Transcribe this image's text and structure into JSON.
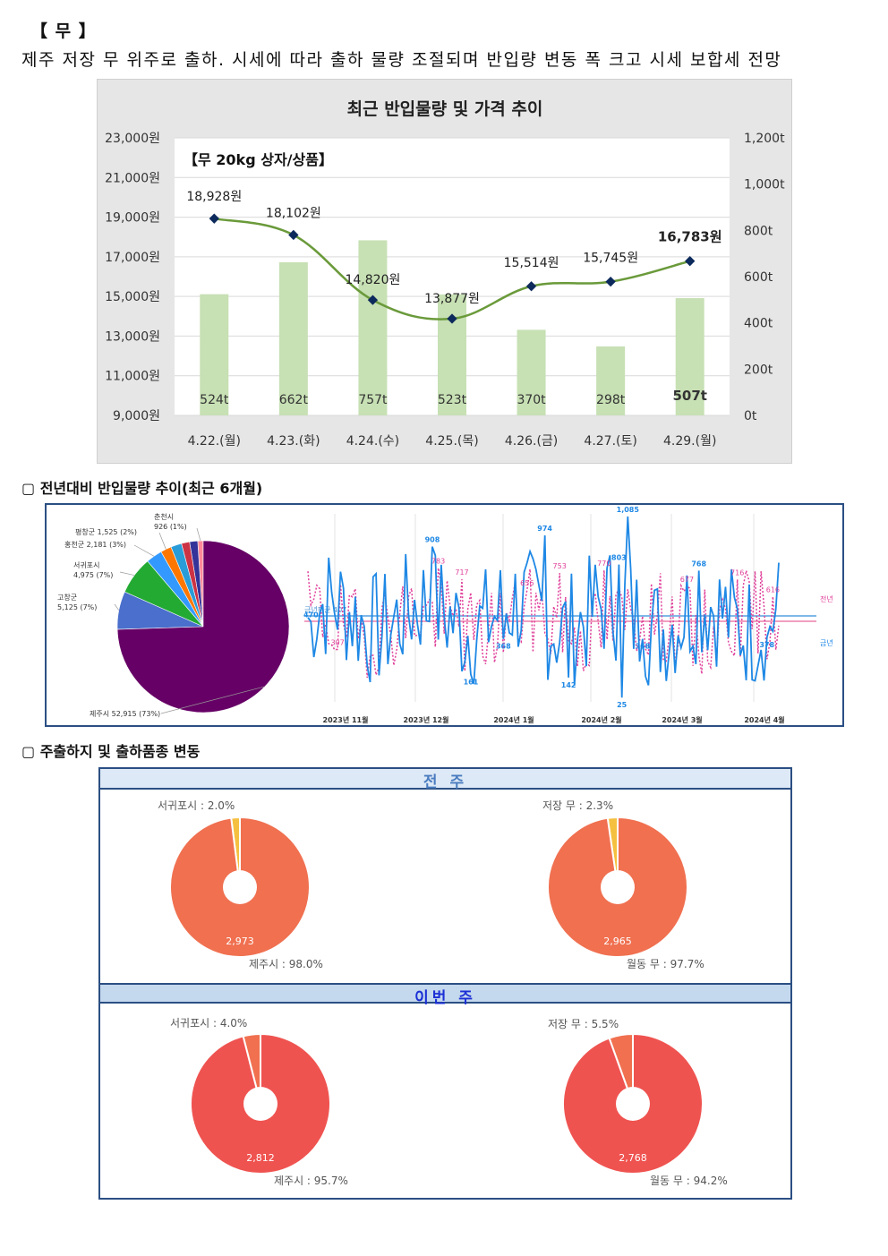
{
  "title": "【 무 】",
  "summary": "제주 저장 무 위주로 출하. 시세에 따라 출하 물량 조절되며 반입량 변동 폭 크고 시세 보합세 전망",
  "chart1": {
    "title": "최근 반입물량 및 가격 추이",
    "subtitle": "【무 20kg 상자/상품】",
    "y_left_ticks": [
      "23,000원",
      "21,000원",
      "19,000원",
      "17,000원",
      "15,000원",
      "13,000원",
      "11,000원",
      "9,000원"
    ],
    "y_right_ticks": [
      "1,200t",
      "1,000t",
      "800t",
      "600t",
      "400t",
      "200t",
      "0t"
    ]
  },
  "chart_data": [
    {
      "type": "bar+line",
      "title": "최근 반입물량 및 가격 추이",
      "subtitle": "【무 20kg 상자/상품】",
      "categories": [
        "4.22.(월)",
        "4.23.(화)",
        "4.24.(수)",
        "4.25.(목)",
        "4.26.(금)",
        "4.27.(토)",
        "4.29.(월)"
      ],
      "series": [
        {
          "kind": "bar",
          "axis": "right",
          "values": [
            524,
            662,
            757,
            523,
            370,
            298,
            507
          ],
          "labels": [
            "524t",
            "662t",
            "757t",
            "523t",
            "370t",
            "298t",
            "507t"
          ],
          "color": "#c7e0b4"
        },
        {
          "kind": "line",
          "axis": "left",
          "values": [
            18928,
            18102,
            14820,
            13877,
            15514,
            15745,
            16783
          ],
          "labels": [
            "18,928원",
            "18,102원",
            "14,820원",
            "13,877원",
            "15,514원",
            "15,745원",
            "16,783원"
          ],
          "color": "#6a9a3a"
        }
      ],
      "ylim_left": [
        9000,
        23000
      ],
      "ylim_right": [
        0,
        1200
      ]
    },
    {
      "type": "pie",
      "slices": [
        {
          "label": "제주시 52,915 (73%)",
          "value": 73,
          "color": "#660066"
        },
        {
          "label": "고창군\n5,125 (7%)",
          "value": 7,
          "color": "#4a6fcc"
        },
        {
          "label": "서귀포시\n4,975 (7%)",
          "value": 7,
          "color": "#22aa33"
        },
        {
          "label": "홍천군 2,181 (3%)",
          "value": 3,
          "color": "#3399ff"
        },
        {
          "label": "평창군 1,525 (2%)",
          "value": 2,
          "color": "#ff7700"
        },
        {
          "label": "",
          "value": 2,
          "color": "#2a9cd8"
        },
        {
          "label": "",
          "value": 1.5,
          "color": "#cc3344"
        },
        {
          "label": "",
          "value": 1.5,
          "color": "#333399"
        },
        {
          "label": "춘천시\n926 (1%)",
          "value": 1,
          "color": "#ff8899"
        }
      ]
    },
    {
      "type": "line",
      "x_ticks": [
        "2023년 11월",
        "2023년 12월",
        "2024년 1월",
        "2024년 2월",
        "2024년 3월",
        "2024년 4월"
      ],
      "series": [
        {
          "name": "금년",
          "color": "#1e88e5",
          "point_labels": [
            "470",
            "908",
            "161",
            "368",
            "974",
            "142",
            "803",
            "1,085",
            "25",
            "368",
            "768",
            "378"
          ]
        },
        {
          "name": "전년",
          "color": "#e0409a",
          "point_labels": [
            "307",
            "783",
            "717",
            "656",
            "753",
            "770",
            "677",
            "716",
            "616"
          ]
        }
      ],
      "avg_label": "금년평균 407"
    }
  ],
  "section2_heading": "▢  전년대비 반입물량 추이(최근 6개월)",
  "section3_heading": "▢  주출하지 및 출하품종 변동",
  "donuts": {
    "prev_week_label": "전 주",
    "this_week_label": "이번 주",
    "prev": [
      {
        "top_label": "서귀포시 : 2.0%",
        "bottom_label": "제주시 : 98.0%",
        "value_label": "2,973",
        "minor_pct": 2.0,
        "main_color": "#f07050",
        "minor_color": "#f5c040"
      },
      {
        "top_label": "저장 무 : 2.3%",
        "bottom_label": "월동 무 : 97.7%",
        "value_label": "2,965",
        "minor_pct": 2.3,
        "main_color": "#f07050",
        "minor_color": "#f5c040"
      }
    ],
    "curr": [
      {
        "top_label": "서귀포시 : 4.0%",
        "bottom_label": "제주시 : 95.7%",
        "value_label": "2,812",
        "minor_pct": 4.0,
        "main_color": "#ef5350",
        "minor_color": "#f07050"
      },
      {
        "top_label": "저장 무 : 5.5%",
        "bottom_label": "월동 무 : 94.2%",
        "value_label": "2,768",
        "minor_pct": 5.5,
        "main_color": "#ef5350",
        "minor_color": "#f07050"
      }
    ]
  }
}
